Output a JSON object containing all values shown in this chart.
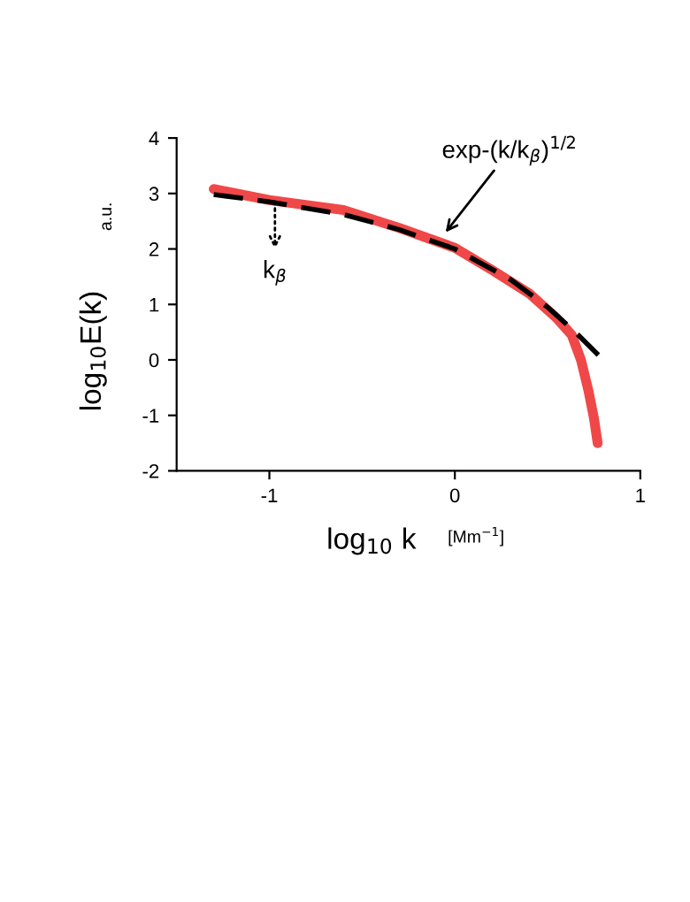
{
  "chart_data": {
    "type": "line",
    "xlabel": "log$_{10}$ k",
    "ylabel": "log$_{10}$E(k)",
    "xlim": [
      -1.5,
      1
    ],
    "ylim": [
      -2,
      4
    ],
    "xticks": [
      -1,
      0,
      1
    ],
    "yticks": [
      -2,
      -1,
      0,
      1,
      2,
      3,
      4
    ],
    "grid": false,
    "legend": false,
    "marker": "none",
    "series": [
      {
        "color": "#f04848",
        "line_style": "solid",
        "x": [
          -1.3,
          -1.0,
          -0.6,
          -0.3,
          0.0,
          0.2,
          0.4,
          0.55,
          0.63,
          0.68,
          0.72,
          0.75,
          0.77
        ],
        "values": [
          3.08,
          2.88,
          2.7,
          2.38,
          2.02,
          1.62,
          1.2,
          0.75,
          0.45,
          0.0,
          -0.55,
          -1.05,
          -1.5
        ]
      },
      {
        "color": "#000000",
        "line_style": "dashed",
        "x": [
          -1.3,
          -1.0,
          -0.6,
          -0.3,
          0.0,
          0.3,
          0.5,
          0.65,
          0.8
        ],
        "values": [
          2.98,
          2.85,
          2.62,
          2.35,
          2.0,
          1.45,
          0.95,
          0.5,
          0.0
        ]
      }
    ],
    "annotations": [
      {
        "text": "exp-(k/k$_{β}$)$^{1/2}$",
        "x": -0.05,
        "y": 2.3
      },
      {
        "text": "k$_{β}$",
        "x": -0.97,
        "y": 2.85
      },
      "a.u.",
      "[Mm$^{−1}$]"
    ]
  }
}
